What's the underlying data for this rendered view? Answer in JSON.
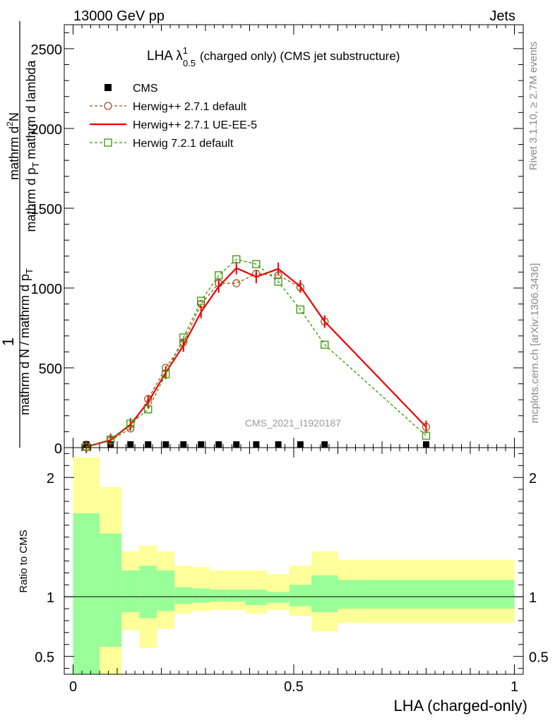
{
  "header": {
    "energy": "13000 GeV pp",
    "process": "Jets"
  },
  "side": {
    "rivet": "Rivet 3.1.10, ≥ 2.7M events",
    "site": "mcplots.cern.ch [arXiv:1306.3436]"
  },
  "chart_data": [
    {
      "type": "line",
      "title_main": "LHA λ",
      "title_sup": "1",
      "title_sub": "0.5",
      "title_rest": "(charged only) (CMS jet substructure)",
      "ylabel_numerator": "1",
      "ylabel_den1": "mathrm d N / mathrm d p",
      "ylabel_den1_sub": "T",
      "ylabel_num_top": "mathrm d",
      "ylabel_num_top_sup": "2",
      "ylabel_num_top_rest": "N",
      "ylabel_den2": "mathrm d p",
      "ylabel_den2_sub": "T",
      "ylabel_den2_rest": "mathrm d lambda",
      "analysis_id": "CMS_2021_I1920187",
      "xlim": [
        -0.02,
        1.02
      ],
      "ylim": [
        0,
        2650
      ],
      "yticks": [
        0,
        500,
        1000,
        1500,
        2000,
        2500
      ],
      "ytick_labels": [
        "0",
        "500",
        "1000",
        "1500",
        "2000",
        "2500"
      ],
      "legend_position": "top-left",
      "x": [
        0.03,
        0.085,
        0.13,
        0.17,
        0.21,
        0.25,
        0.29,
        0.33,
        0.37,
        0.415,
        0.465,
        0.515,
        0.57,
        0.8
      ],
      "series": [
        {
          "name": "CMS",
          "style": "marker-square",
          "color": "#000000",
          "values": [
            0,
            0,
            0,
            0,
            0,
            0,
            0,
            0,
            0,
            0,
            0,
            0,
            0,
            0
          ]
        },
        {
          "name": "Herwig++ 2.7.1 default",
          "style": "dashed-circle",
          "color": "#a0541e",
          "values": [
            5,
            45,
            120,
            305,
            500,
            660,
            900,
            1030,
            1030,
            1090,
            1080,
            1005,
            790,
            130
          ]
        },
        {
          "name": "Herwig++ 2.7.1 UE-EE-5",
          "style": "solid",
          "color": "#ee0000",
          "values": [
            5,
            48,
            145,
            285,
            470,
            640,
            850,
            1010,
            1125,
            1070,
            1120,
            1010,
            790,
            130
          ]
        },
        {
          "name": "Herwig 7.2.1 default",
          "style": "dashed-square",
          "color": "#339900",
          "values": [
            5,
            50,
            150,
            240,
            460,
            690,
            920,
            1080,
            1180,
            1150,
            1040,
            865,
            645,
            75
          ]
        }
      ]
    },
    {
      "type": "area",
      "ylabel": "Ratio to CMS",
      "xlabel": "LHA (charged-only)",
      "xlim": [
        -0.02,
        1.02
      ],
      "xticks": [
        0,
        0.5,
        1
      ],
      "xtick_labels": [
        "0",
        "0.5",
        "1"
      ],
      "ylim": [
        0.35,
        2.25
      ],
      "yticks": [
        0.5,
        1,
        2
      ],
      "ytick_labels": [
        "0.5",
        "1",
        "2"
      ],
      "band_colors": {
        "inner": "#99ff99",
        "outer": "#ffff99"
      },
      "bins": [
        {
          "x0": 0.0,
          "x1": 0.06,
          "inner_lo": 0.35,
          "inner_hi": 1.7,
          "outer_lo": 0.35,
          "outer_hi": 2.17
        },
        {
          "x0": 0.06,
          "x1": 0.11,
          "inner_lo": 0.58,
          "inner_hi": 1.53,
          "outer_lo": 0.35,
          "outer_hi": 1.92
        },
        {
          "x0": 0.11,
          "x1": 0.15,
          "inner_lo": 0.87,
          "inner_hi": 1.22,
          "outer_lo": 0.72,
          "outer_hi": 1.38
        },
        {
          "x0": 0.15,
          "x1": 0.19,
          "inner_lo": 0.82,
          "inner_hi": 1.26,
          "outer_lo": 0.57,
          "outer_hi": 1.43
        },
        {
          "x0": 0.19,
          "x1": 0.23,
          "inner_lo": 0.88,
          "inner_hi": 1.22,
          "outer_lo": 0.73,
          "outer_hi": 1.38
        },
        {
          "x0": 0.23,
          "x1": 0.27,
          "inner_lo": 0.94,
          "inner_hi": 1.08,
          "outer_lo": 0.86,
          "outer_hi": 1.26
        },
        {
          "x0": 0.27,
          "x1": 0.31,
          "inner_lo": 0.95,
          "inner_hi": 1.07,
          "outer_lo": 0.88,
          "outer_hi": 1.25
        },
        {
          "x0": 0.31,
          "x1": 0.35,
          "inner_lo": 0.96,
          "inner_hi": 1.06,
          "outer_lo": 0.89,
          "outer_hi": 1.22
        },
        {
          "x0": 0.35,
          "x1": 0.39,
          "inner_lo": 0.96,
          "inner_hi": 1.06,
          "outer_lo": 0.89,
          "outer_hi": 1.22
        },
        {
          "x0": 0.39,
          "x1": 0.44,
          "inner_lo": 0.93,
          "inner_hi": 1.06,
          "outer_lo": 0.86,
          "outer_hi": 1.22
        },
        {
          "x0": 0.44,
          "x1": 0.49,
          "inner_lo": 0.95,
          "inner_hi": 1.04,
          "outer_lo": 0.89,
          "outer_hi": 1.19
        },
        {
          "x0": 0.49,
          "x1": 0.54,
          "inner_lo": 0.92,
          "inner_hi": 1.1,
          "outer_lo": 0.84,
          "outer_hi": 1.26
        },
        {
          "x0": 0.54,
          "x1": 0.6,
          "inner_lo": 0.87,
          "inner_hi": 1.18,
          "outer_lo": 0.71,
          "outer_hi": 1.38
        },
        {
          "x0": 0.6,
          "x1": 1.0,
          "inner_lo": 0.9,
          "inner_hi": 1.14,
          "outer_lo": 0.78,
          "outer_hi": 1.31
        }
      ]
    }
  ]
}
